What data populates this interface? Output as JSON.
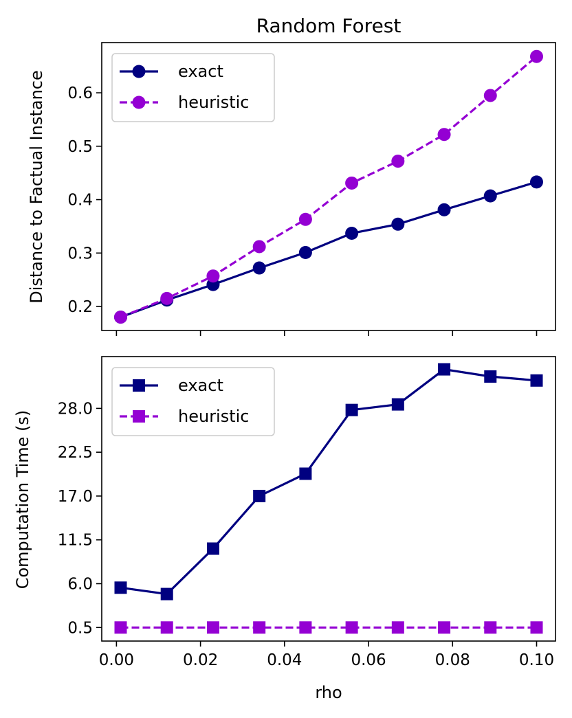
{
  "chart_data": [
    {
      "type": "line",
      "title": "Random Forest",
      "xlabel": "",
      "ylabel": "Distance to Factual Instance",
      "x": [
        0.001,
        0.012,
        0.023,
        0.034,
        0.045,
        0.056,
        0.067,
        0.078,
        0.089,
        0.1
      ],
      "xlim": [
        -0.0035,
        0.1045
      ],
      "ylim": [
        0.155,
        0.694
      ],
      "yticks": [
        0.2,
        0.3,
        0.4,
        0.5,
        0.6
      ],
      "ytick_labels": [
        "0.2",
        "0.3",
        "0.4",
        "0.5",
        "0.6"
      ],
      "marker": "circle",
      "series": [
        {
          "name": "exact",
          "color": "#000080",
          "linestyle": "solid",
          "values": [
            0.18,
            0.212,
            0.241,
            0.272,
            0.301,
            0.337,
            0.354,
            0.381,
            0.407,
            0.433
          ]
        },
        {
          "name": "heuristic",
          "color": "#9400d3",
          "linestyle": "dashed",
          "values": [
            0.18,
            0.215,
            0.257,
            0.312,
            0.363,
            0.431,
            0.472,
            0.522,
            0.595,
            0.668
          ]
        }
      ],
      "legend": "top-left"
    },
    {
      "type": "line",
      "title": "",
      "xlabel": "rho",
      "ylabel": "Computation Time (s)",
      "x": [
        0.001,
        0.012,
        0.023,
        0.034,
        0.045,
        0.056,
        0.067,
        0.078,
        0.089,
        0.1
      ],
      "xlim": [
        -0.0035,
        0.1045
      ],
      "xticks": [
        0.0,
        0.02,
        0.04,
        0.06,
        0.08,
        0.1
      ],
      "xtick_labels": [
        "0.00",
        "0.02",
        "0.04",
        "0.06",
        "0.08",
        "0.10"
      ],
      "ylim": [
        -1.2,
        34.5
      ],
      "yticks": [
        0.5,
        6.0,
        11.5,
        17.0,
        22.5,
        28.0
      ],
      "ytick_labels": [
        "0.5",
        "6.0",
        "11.5",
        "17.0",
        "22.5",
        "28.0"
      ],
      "marker": "square",
      "series": [
        {
          "name": "exact",
          "color": "#000080",
          "linestyle": "solid",
          "values": [
            5.5,
            4.7,
            10.4,
            17.0,
            19.8,
            27.8,
            28.5,
            32.9,
            32.0,
            31.5
          ]
        },
        {
          "name": "heuristic",
          "color": "#9400d3",
          "linestyle": "dashed",
          "values": [
            0.5,
            0.5,
            0.5,
            0.5,
            0.5,
            0.5,
            0.5,
            0.5,
            0.5,
            0.5
          ]
        }
      ],
      "legend": "top-left"
    }
  ]
}
